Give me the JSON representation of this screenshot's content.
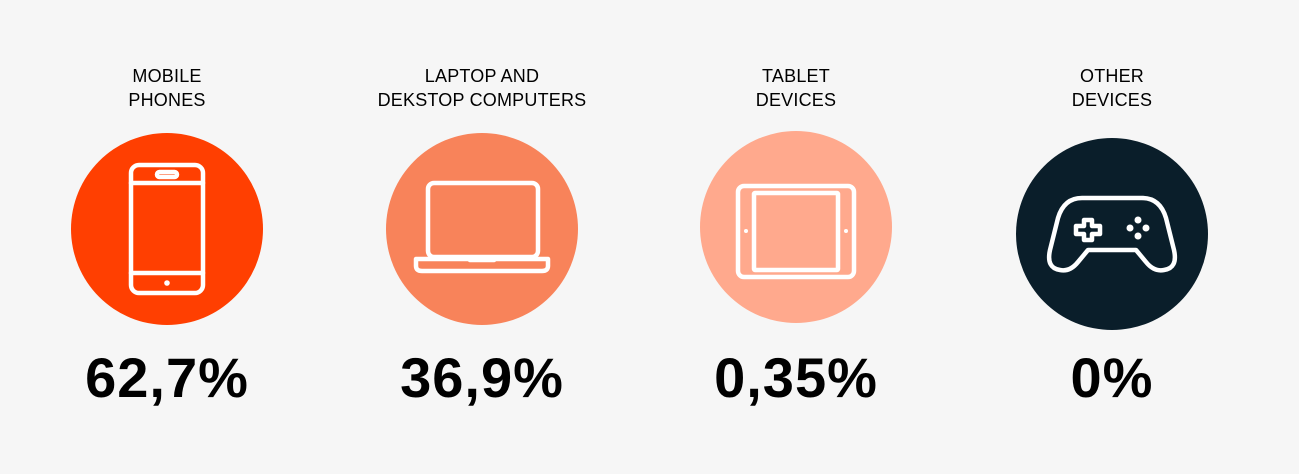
{
  "stats": [
    {
      "label_line1": "MOBILE",
      "label_line2": "PHONES",
      "value": "62,7%",
      "icon": "mobile-phone-icon",
      "color": "#ff3f01"
    },
    {
      "label_line1": "LAPTOP AND",
      "label_line2": "DEKSTOP COMPUTERS",
      "value": "36,9%",
      "icon": "laptop-icon",
      "color": "#f8835a"
    },
    {
      "label_line1": "TABLET",
      "label_line2": "DEVICES",
      "value": "0,35%",
      "icon": "tablet-icon",
      "color": "#ffa98d"
    },
    {
      "label_line1": "OTHER",
      "label_line2": "DEVICES",
      "value": "0%",
      "icon": "gamepad-icon",
      "color": "#0a1e2a"
    }
  ]
}
